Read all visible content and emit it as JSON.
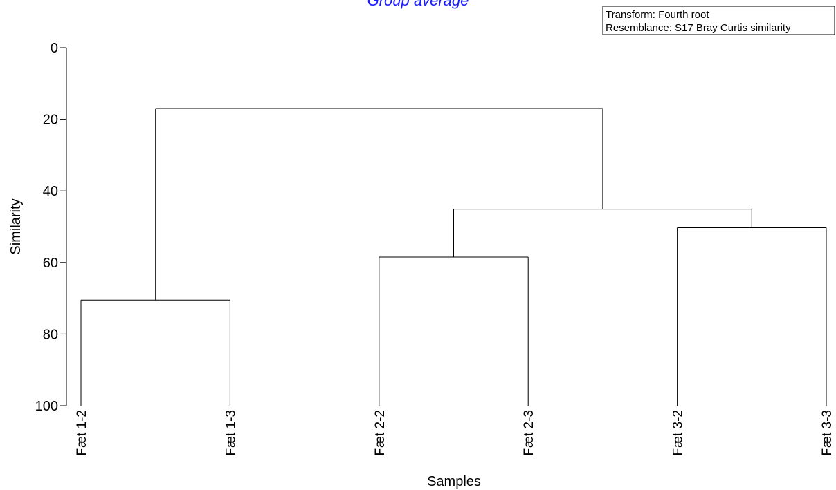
{
  "chart_data": {
    "type": "dendrogram",
    "title": "Group average",
    "xlabel": "Samples",
    "ylabel": "Similarity",
    "ylim": [
      0,
      100
    ],
    "yticks": [
      "0",
      "20",
      "40",
      "60",
      "80",
      "100"
    ],
    "leaves": [
      "Fæt 1-2",
      "Fæt 1-3",
      "Fæt 2-2",
      "Fæt 2-3",
      "Fæt 3-2",
      "Fæt 3-3"
    ],
    "merges": [
      {
        "left": "Fæt 1-2",
        "right": "Fæt 1-3",
        "similarity": 70.5
      },
      {
        "left": "Fæt 2-2",
        "right": "Fæt 2-3",
        "similarity": 58.5
      },
      {
        "left": "Fæt 3-2",
        "right": "Fæt 3-3",
        "similarity": 50.3
      },
      {
        "left": "Fæt 2-2+Fæt 2-3",
        "right": "Fæt 3-2+Fæt 3-3",
        "similarity": 45.1
      },
      {
        "left": "Fæt 1-2+Fæt 1-3",
        "right": "Fæt 2-2..Fæt 3-3",
        "similarity": 17.0
      }
    ],
    "legend": {
      "lines": [
        "Transform: Fourth root",
        "Resemblance: S17 Bray Curtis similarity"
      ]
    }
  }
}
